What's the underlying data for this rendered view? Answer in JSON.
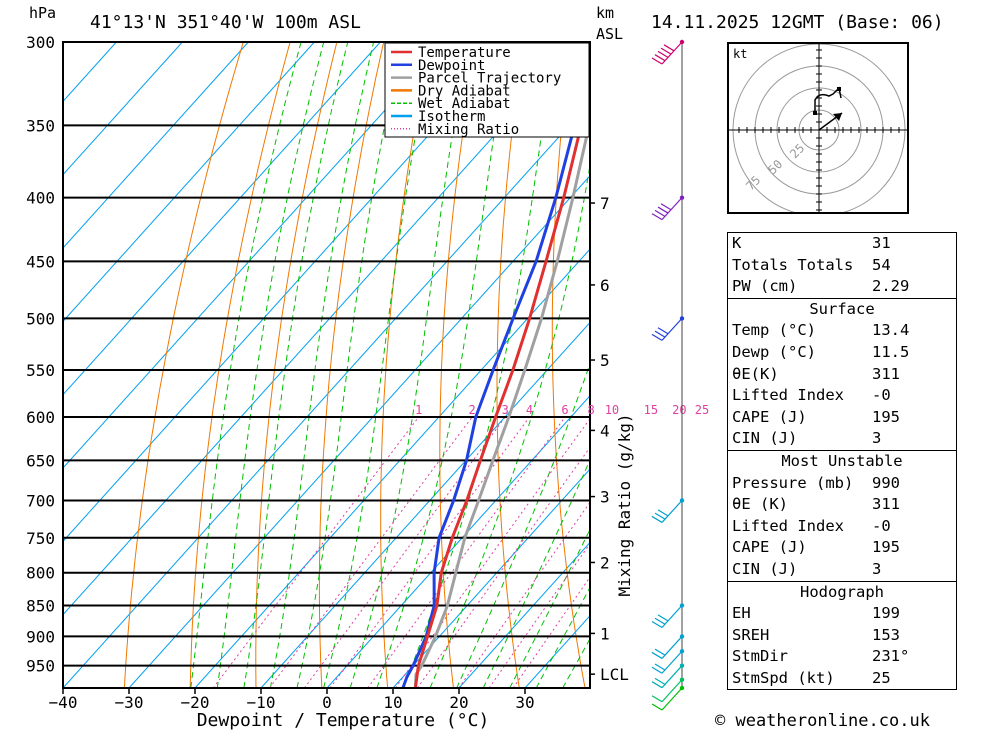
{
  "header": {
    "hpa_label": "hPa",
    "location": "41°13'N 351°40'W 100m ASL",
    "km_label": "km",
    "asl_label": "ASL",
    "datetime": "14.11.2025 12GMT (Base: 06)"
  },
  "chart_data": {
    "type": "line",
    "title": "41°13'N 351°40'W 100m ASL",
    "xlabel": "Dewpoint / Temperature (°C)",
    "ylabel": "hPa",
    "mixing_ratio_label": "Mixing Ratio (g/kg)",
    "pressure_levels": [
      300,
      350,
      400,
      450,
      500,
      550,
      600,
      650,
      700,
      750,
      800,
      850,
      900,
      950
    ],
    "pressure_range": [
      300,
      990
    ],
    "x_ticks": [
      -40,
      -30,
      -20,
      -10,
      0,
      10,
      20,
      30
    ],
    "x_range": [
      -40,
      40
    ],
    "altitude_km_ticks": [
      {
        "label": "7",
        "p": 404
      },
      {
        "label": "6",
        "p": 470
      },
      {
        "label": "5",
        "p": 540
      },
      {
        "label": "4",
        "p": 615
      },
      {
        "label": "3",
        "p": 695
      },
      {
        "label": "2",
        "p": 785
      },
      {
        "label": "1",
        "p": 895
      },
      {
        "label": "LCL",
        "p": 965
      }
    ],
    "mixing_ratio_values": [
      {
        "label": "1",
        "value": 1
      },
      {
        "label": "2",
        "value": 2
      },
      {
        "label": "3",
        "value": 3
      },
      {
        "label": "4",
        "value": 4
      },
      {
        "label": "6",
        "value": 6
      },
      {
        "label": "8",
        "value": 8
      },
      {
        "label": "10",
        "value": 10
      },
      {
        "label": "15",
        "value": 15
      },
      {
        "label": "20",
        "value": 20
      },
      {
        "label": "25",
        "value": 25
      }
    ],
    "series": [
      {
        "name": "Temperature",
        "color": "#e03030",
        "points": [
          [
            990,
            13.4
          ],
          [
            950,
            10.8
          ],
          [
            900,
            8.2
          ],
          [
            850,
            5.4
          ],
          [
            800,
            1.6
          ],
          [
            750,
            -1.5
          ],
          [
            700,
            -4.4
          ],
          [
            650,
            -7.8
          ],
          [
            600,
            -11.4
          ],
          [
            550,
            -15.2
          ],
          [
            500,
            -19.7
          ],
          [
            450,
            -25.0
          ],
          [
            400,
            -31.0
          ],
          [
            350,
            -38.2
          ],
          [
            300,
            -46.4
          ]
        ]
      },
      {
        "name": "Dewpoint",
        "color": "#2040e0",
        "points": [
          [
            990,
            11.5
          ],
          [
            970,
            10.6
          ],
          [
            950,
            10.0
          ],
          [
            900,
            8.0
          ],
          [
            850,
            5.0
          ],
          [
            800,
            0.5
          ],
          [
            750,
            -3.5
          ],
          [
            700,
            -6.4
          ],
          [
            650,
            -9.9
          ],
          [
            600,
            -14.4
          ],
          [
            550,
            -18.2
          ],
          [
            500,
            -22.2
          ],
          [
            450,
            -26.5
          ],
          [
            400,
            -32.2
          ],
          [
            350,
            -39.2
          ],
          [
            300,
            -47.0
          ]
        ]
      },
      {
        "name": "Parcel Trajectory",
        "color": "#a0a0a0",
        "points": [
          [
            990,
            13.4
          ],
          [
            965,
            11.6
          ],
          [
            950,
            11.3
          ],
          [
            900,
            9.4
          ],
          [
            850,
            7.0
          ],
          [
            800,
            3.8
          ],
          [
            750,
            0.4
          ],
          [
            700,
            -2.6
          ],
          [
            650,
            -5.9
          ],
          [
            600,
            -9.4
          ],
          [
            550,
            -13.4
          ],
          [
            500,
            -17.9
          ],
          [
            450,
            -23.3
          ],
          [
            400,
            -29.6
          ],
          [
            350,
            -37.0
          ],
          [
            300,
            -45.6
          ]
        ]
      }
    ],
    "legend": {
      "placement": "top-right",
      "entries": [
        {
          "name": "Temperature",
          "color": "#e03030",
          "style": "solid"
        },
        {
          "name": "Dewpoint",
          "color": "#2040e0",
          "style": "solid"
        },
        {
          "name": "Parcel Trajectory",
          "color": "#a0a0a0",
          "style": "solid"
        },
        {
          "name": "Dry Adiabat",
          "color": "#f07800",
          "style": "solid"
        },
        {
          "name": "Wet Adiabat",
          "color": "#00c000",
          "style": "dashed"
        },
        {
          "name": "Isotherm",
          "color": "#00a0f0",
          "style": "solid"
        },
        {
          "name": "Mixing Ratio",
          "color": "#e040a0",
          "style": "dotted"
        }
      ]
    },
    "wind_barbs": [
      {
        "p": 300,
        "speed_kt": 60,
        "color": "#d00070"
      },
      {
        "p": 400,
        "speed_kt": 40,
        "color": "#8020c0"
      },
      {
        "p": 500,
        "speed_kt": 30,
        "color": "#2040e0"
      },
      {
        "p": 700,
        "speed_kt": 30,
        "color": "#00a0d0"
      },
      {
        "p": 850,
        "speed_kt": 25,
        "color": "#00a0d0"
      },
      {
        "p": 900,
        "speed_kt": 20,
        "color": "#00a0d0"
      },
      {
        "p": 925,
        "speed_kt": 20,
        "color": "#00a0d0"
      },
      {
        "p": 950,
        "speed_kt": 15,
        "color": "#00b0b0"
      },
      {
        "p": 975,
        "speed_kt": 10,
        "color": "#00c060"
      },
      {
        "p": 990,
        "speed_kt": 5,
        "color": "#00c000"
      }
    ],
    "hodograph": {
      "unit_label": "kt",
      "ring_labels": [
        "25",
        "50",
        "75"
      ]
    }
  },
  "stats": {
    "indices": [
      {
        "label": "K",
        "value": "31"
      },
      {
        "label": "Totals Totals",
        "value": "54"
      },
      {
        "label": "PW (cm)",
        "value": "2.29"
      }
    ],
    "surface": {
      "title": "Surface",
      "rows": [
        {
          "label": "Temp (°C)",
          "value": "13.4"
        },
        {
          "label": "Dewp (°C)",
          "value": "11.5"
        },
        {
          "label": "θE(K)",
          "value": "311"
        },
        {
          "label": "Lifted Index",
          "value": "-0"
        },
        {
          "label": "CAPE (J)",
          "value": "195"
        },
        {
          "label": "CIN (J)",
          "value": "3"
        }
      ]
    },
    "most_unstable": {
      "title": "Most Unstable",
      "rows": [
        {
          "label": "Pressure (mb)",
          "value": "990"
        },
        {
          "label": "θE (K)",
          "value": "311"
        },
        {
          "label": "Lifted Index",
          "value": "-0"
        },
        {
          "label": "CAPE (J)",
          "value": "195"
        },
        {
          "label": "CIN (J)",
          "value": "3"
        }
      ]
    },
    "hodograph": {
      "title": "Hodograph",
      "rows": [
        {
          "label": "EH",
          "value": "199"
        },
        {
          "label": "SREH",
          "value": "153"
        },
        {
          "label": "StmDir",
          "value": "231°"
        },
        {
          "label": "StmSpd (kt)",
          "value": "25"
        }
      ]
    }
  },
  "footer": {
    "credit": "© weatheronline.co.uk"
  }
}
